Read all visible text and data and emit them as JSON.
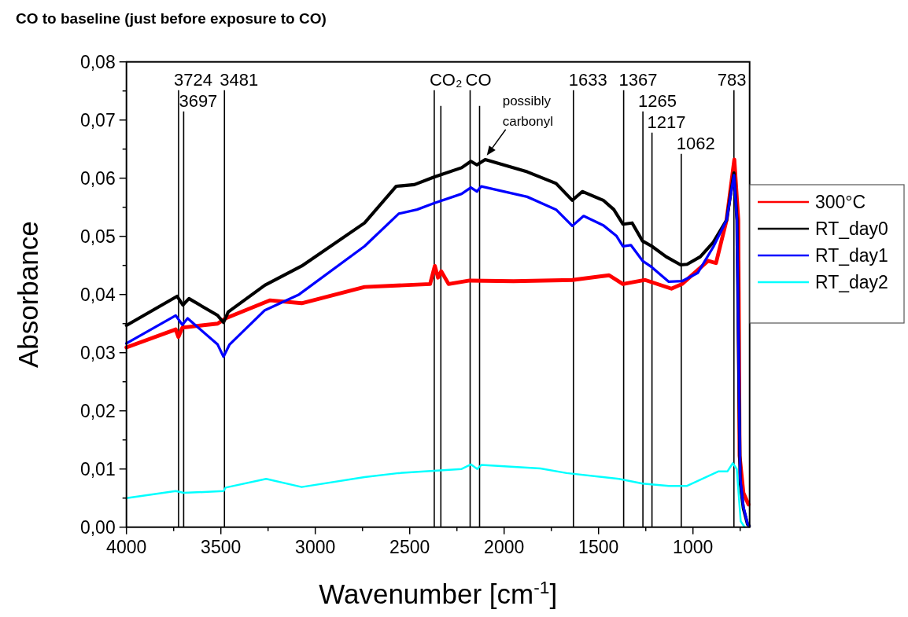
{
  "chart_data": {
    "type": "line",
    "title": "CO to baseline (just before exposure to CO)",
    "xlabel": "Wavenumber [cm$^{-1}$]",
    "ylabel": "Absorbance",
    "xlim": [
      4000,
      700
    ],
    "ylim": [
      0,
      0.08
    ],
    "xticks": [
      4000,
      {
        "value": 3750,
        "label": null
      },
      3500,
      {
        "value": 3250,
        "label": null
      },
      3000,
      {
        "value": 2750,
        "label": null
      },
      2500,
      {
        "value": 2250,
        "label": null
      },
      2000,
      {
        "value": 1750,
        "label": null
      },
      1500,
      {
        "value": 1250,
        "label": null
      },
      1000,
      {
        "value": 750,
        "label": null
      }
    ],
    "yticks": [
      {
        "value": 0,
        "label": "0,00"
      },
      {
        "value": 0.005,
        "label": null
      },
      {
        "value": 0.01,
        "label": "0,01"
      },
      {
        "value": 0.015,
        "label": null
      },
      {
        "value": 0.02,
        "label": "0,02"
      },
      {
        "value": 0.025,
        "label": null
      },
      {
        "value": 0.03,
        "label": "0,03"
      },
      {
        "value": 0.035,
        "label": null
      },
      {
        "value": 0.04,
        "label": "0,04"
      },
      {
        "value": 0.045,
        "label": null
      },
      {
        "value": 0.05,
        "label": "0,05"
      },
      {
        "value": 0.055,
        "label": null
      },
      {
        "value": 0.06,
        "label": "0,06"
      },
      {
        "value": 0.065,
        "label": null
      },
      {
        "value": 0.07,
        "label": "0,07"
      },
      {
        "value": 0.075,
        "label": null
      },
      {
        "value": 0.08,
        "label": "0,08"
      }
    ],
    "legend": "right",
    "series": [
      {
        "name": "300°C",
        "color": "#ff0000",
        "x": [
          4000,
          3739,
          3725,
          3704,
          3517,
          3475,
          3239,
          3072,
          2739,
          2392,
          2367,
          2350,
          2333,
          2294,
          2183,
          1950,
          1639,
          1444,
          1371,
          1253,
          1114,
          1058,
          989,
          919,
          878,
          822,
          781,
          760,
          753,
          733,
          706
        ],
        "values": [
          0.0309,
          0.034,
          0.0327,
          0.0343,
          0.035,
          0.0359,
          0.039,
          0.0385,
          0.0413,
          0.0418,
          0.0449,
          0.0429,
          0.044,
          0.0418,
          0.0424,
          0.0423,
          0.0425,
          0.0433,
          0.0418,
          0.0425,
          0.041,
          0.0418,
          0.0438,
          0.0458,
          0.0454,
          0.0528,
          0.0632,
          0.0528,
          0.0123,
          0.0059,
          0.0039
        ]
      },
      {
        "name": "RT_day0",
        "color": "#000000",
        "x": [
          4000,
          3732,
          3701,
          3669,
          3517,
          3486,
          3461,
          3267,
          3072,
          2739,
          2572,
          2475,
          2371,
          2225,
          2176,
          2144,
          2100,
          1878,
          1725,
          1639,
          1586,
          1475,
          1419,
          1371,
          1322,
          1267,
          1218,
          1142,
          1065,
          1031,
          961,
          892,
          822,
          783,
          767,
          750,
          733,
          711,
          702
        ],
        "values": [
          0.0347,
          0.0397,
          0.0382,
          0.0393,
          0.0364,
          0.0352,
          0.037,
          0.0416,
          0.0449,
          0.0523,
          0.0586,
          0.0589,
          0.0602,
          0.0618,
          0.0629,
          0.0623,
          0.0632,
          0.0611,
          0.0591,
          0.0562,
          0.0577,
          0.0562,
          0.0546,
          0.0521,
          0.0523,
          0.0492,
          0.0483,
          0.0465,
          0.0451,
          0.0452,
          0.0465,
          0.049,
          0.0528,
          0.0609,
          0.0528,
          0.0077,
          0.0032,
          0.0005,
          0.0002
        ]
      },
      {
        "name": "RT_day1",
        "color": "#0000ff",
        "x": [
          4000,
          3739,
          3704,
          3676,
          3517,
          3486,
          3454,
          3267,
          3086,
          2739,
          2558,
          2461,
          2371,
          2225,
          2176,
          2144,
          2121,
          1878,
          1725,
          1639,
          1579,
          1475,
          1406,
          1371,
          1329,
          1267,
          1218,
          1128,
          1058,
          975,
          892,
          822,
          783,
          767,
          750,
          733,
          711,
          702
        ],
        "values": [
          0.0316,
          0.0364,
          0.0348,
          0.0359,
          0.0314,
          0.0293,
          0.0314,
          0.0373,
          0.04,
          0.0483,
          0.0539,
          0.0546,
          0.0557,
          0.0573,
          0.0584,
          0.0577,
          0.0586,
          0.0568,
          0.0546,
          0.0518,
          0.0535,
          0.0519,
          0.0501,
          0.0483,
          0.0485,
          0.0458,
          0.0447,
          0.0422,
          0.0423,
          0.0437,
          0.0482,
          0.0528,
          0.0605,
          0.0528,
          0.0085,
          0.0035,
          0.0006,
          0.0002
        ]
      },
      {
        "name": "RT_day2",
        "color": "#00ffff",
        "x": [
          4000,
          3739,
          3697,
          3486,
          3475,
          3260,
          3072,
          2739,
          2558,
          2225,
          2176,
          2142,
          2121,
          1808,
          1669,
          1392,
          1267,
          1128,
          1031,
          864,
          817,
          789,
          768,
          747,
          726
        ],
        "values": [
          0.005,
          0.0062,
          0.0059,
          0.0062,
          0.0068,
          0.0083,
          0.0069,
          0.0086,
          0.0093,
          0.01,
          0.0108,
          0.01,
          0.0107,
          0.0101,
          0.0093,
          0.0083,
          0.0075,
          0.0071,
          0.0071,
          0.0096,
          0.0096,
          0.011,
          0.01,
          0.001,
          0
        ]
      }
    ],
    "ref_lines": [
      {
        "axis": "x",
        "value": 3724,
        "label": "3724"
      },
      {
        "axis": "x",
        "value": 3697,
        "label": "3697"
      },
      {
        "axis": "x",
        "value": 3481,
        "label": "3481"
      },
      {
        "axis": "x",
        "value": 2370,
        "label": "CO₂"
      },
      {
        "axis": "x",
        "value": 2335,
        "label": null
      },
      {
        "axis": "x",
        "value": 2180,
        "label": "CO"
      },
      {
        "axis": "x",
        "value": 2130,
        "label": null
      },
      {
        "axis": "x",
        "value": 1633,
        "label": "1633"
      },
      {
        "axis": "x",
        "value": 1367,
        "label": "1367"
      },
      {
        "axis": "x",
        "value": 1265,
        "label": "1265"
      },
      {
        "axis": "x",
        "value": 1217,
        "label": "1217"
      },
      {
        "axis": "x",
        "value": 1062,
        "label": "1062"
      },
      {
        "axis": "x",
        "value": 783,
        "label": "783"
      }
    ],
    "annotations": [
      {
        "text": "possibly carbonyl",
        "x": 2100,
        "y": 0.0635
      }
    ]
  }
}
